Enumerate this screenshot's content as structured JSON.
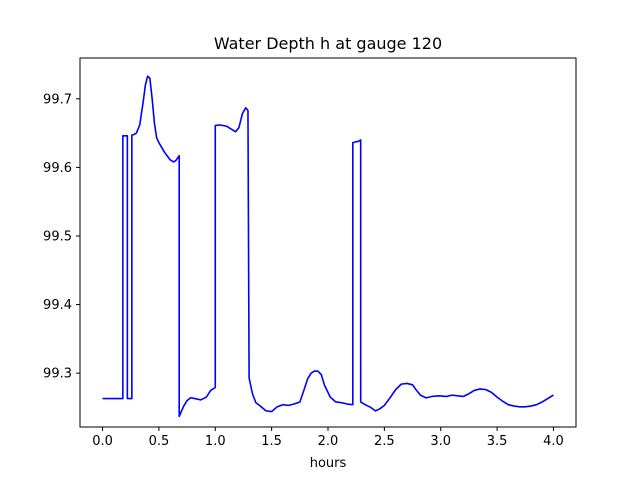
{
  "chart_data": {
    "type": "line",
    "title": "Water Depth h at gauge 120",
    "xlabel": "hours",
    "ylabel": "",
    "xlim": [
      -0.2,
      4.2
    ],
    "ylim": [
      99.2215,
      99.7595
    ],
    "xticks": [
      0.0,
      0.5,
      1.0,
      1.5,
      2.0,
      2.5,
      3.0,
      3.5,
      4.0
    ],
    "xtick_labels": [
      "0.0",
      "0.5",
      "1.0",
      "1.5",
      "2.0",
      "2.5",
      "3.0",
      "3.5",
      "4.0"
    ],
    "yticks": [
      99.3,
      99.4,
      99.5,
      99.6,
      99.7
    ],
    "ytick_labels": [
      "99.3",
      "99.4",
      "99.5",
      "99.6",
      "99.7"
    ],
    "grid": false,
    "series": [
      {
        "name": "",
        "color": "#0000ff",
        "x": [
          0.0,
          0.18,
          0.18,
          0.22,
          0.22,
          0.26,
          0.26,
          0.28,
          0.3,
          0.33,
          0.36,
          0.38,
          0.4,
          0.42,
          0.44,
          0.46,
          0.48,
          0.5,
          0.55,
          0.6,
          0.63,
          0.65,
          0.68,
          0.68,
          0.72,
          0.75,
          0.78,
          0.82,
          0.87,
          0.92,
          0.96,
          1.0,
          1.0,
          1.04,
          1.1,
          1.15,
          1.18,
          1.21,
          1.24,
          1.27,
          1.29,
          1.3,
          1.3,
          1.33,
          1.36,
          1.4,
          1.45,
          1.5,
          1.55,
          1.6,
          1.65,
          1.7,
          1.75,
          1.78,
          1.82,
          1.85,
          1.88,
          1.91,
          1.94,
          1.97,
          2.02,
          2.07,
          2.12,
          2.17,
          2.22,
          2.22,
          2.24,
          2.27,
          2.29,
          2.29,
          2.33,
          2.38,
          2.42,
          2.46,
          2.5,
          2.55,
          2.6,
          2.65,
          2.7,
          2.75,
          2.78,
          2.82,
          2.87,
          2.92,
          2.98,
          3.05,
          3.1,
          3.15,
          3.2,
          3.25,
          3.3,
          3.35,
          3.4,
          3.45,
          3.5,
          3.55,
          3.6,
          3.65,
          3.7,
          3.75,
          3.8,
          3.85,
          3.9,
          3.95,
          4.0
        ],
        "y": [
          99.263,
          99.263,
          99.646,
          99.646,
          99.263,
          99.263,
          99.647,
          99.648,
          99.65,
          99.662,
          99.695,
          99.72,
          99.733,
          99.73,
          99.7,
          99.665,
          99.643,
          99.636,
          99.622,
          99.611,
          99.608,
          99.61,
          99.617,
          99.237,
          99.252,
          99.26,
          99.264,
          99.263,
          99.261,
          99.265,
          99.275,
          99.279,
          99.661,
          99.662,
          99.66,
          99.655,
          99.652,
          99.658,
          99.678,
          99.687,
          99.683,
          99.295,
          99.293,
          99.27,
          99.257,
          99.252,
          99.245,
          99.244,
          99.251,
          99.254,
          99.253,
          99.255,
          99.258,
          99.272,
          99.292,
          99.3,
          99.303,
          99.303,
          99.298,
          99.282,
          99.265,
          99.258,
          99.257,
          99.255,
          99.254,
          99.636,
          99.637,
          99.638,
          99.64,
          99.258,
          99.254,
          99.25,
          99.245,
          99.248,
          99.253,
          99.264,
          99.276,
          99.284,
          99.285,
          99.283,
          99.276,
          99.268,
          99.264,
          99.266,
          99.267,
          99.266,
          99.268,
          99.267,
          99.266,
          99.27,
          99.275,
          99.277,
          99.276,
          99.272,
          99.265,
          99.259,
          99.254,
          99.252,
          99.251,
          99.251,
          99.252,
          99.254,
          99.258,
          99.263,
          99.268
        ]
      }
    ]
  }
}
